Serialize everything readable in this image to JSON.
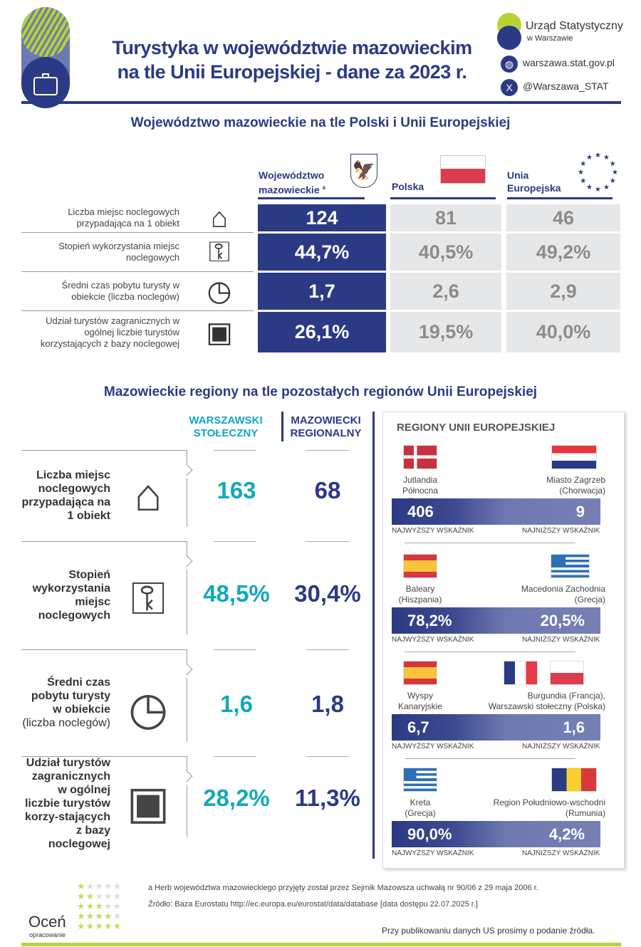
{
  "header": {
    "title_line1": "Turystyka w województwie mazowieckim",
    "title_line2": "na tle Unii Europejskiej - dane za 2023 r.",
    "org_name": "Urząd Statystyczny",
    "org_city": "w Warszawie",
    "website": "warszawa.stat.gov.pl",
    "twitter": "@Warszawa_STAT"
  },
  "section1": {
    "title": "Województwo mazowieckie na tle Polski i Unii Europejskiej",
    "columns": {
      "voiv_line1": "Województwo",
      "voiv_line2": "mazowieckie",
      "voiv_sup": "a",
      "poland": "Polska",
      "eu_line1": "Unia",
      "eu_line2": "Europejska"
    },
    "rows": [
      {
        "label": "Liczba miejsc noclegowych przypadająca na 1 obiekt",
        "icon": "house-bed-icon",
        "voiv": "124",
        "poland": "81",
        "eu": "46"
      },
      {
        "label": "Stopień wykorzystania miejsc noclegowych",
        "icon": "key-clock-icon",
        "voiv": "44,7%",
        "poland": "40,5%",
        "eu": "49,2%"
      },
      {
        "label": "Średni czas pobytu turysty w obiekcie (liczba noclegów)",
        "icon": "hand-clock-icon",
        "voiv": "1,7",
        "poland": "2,6",
        "eu": "2,9"
      },
      {
        "label": "Udział turystów zagranicznych w ogólnej liczbie turystów korzystających z bazy noclegowej",
        "icon": "passport-icon",
        "voiv": "26,1%",
        "poland": "19,5%",
        "eu": "40,0%"
      }
    ]
  },
  "section2": {
    "title": "Mazowieckie regiony na tle pozostałych regionów Unii Europejskiej",
    "col_ws_line1": "WARSZAWSKI",
    "col_ws_line2": "STOŁECZNY",
    "col_mr_line1": "MAZOWIECKI",
    "col_mr_line2": "REGIONALNY",
    "eu_title": "REGIONY UNII EUROPEJSKIEJ",
    "rows": [
      {
        "label": "Liczba miejsc noclegowych przypadająca na 1 obiekt",
        "label_extra": "",
        "ws": "163",
        "mr": "68",
        "high": {
          "name": "Jutlandia Północna",
          "country": "(Dania)",
          "value": "406",
          "flag": "dk"
        },
        "low": {
          "name": "Miasto Zagrzeb",
          "country": "(Chorwacja)",
          "value": "9",
          "flag": "hr"
        }
      },
      {
        "label": "Stopień wykorzystania miejsc noclegowych",
        "label_extra": "",
        "ws": "48,5%",
        "mr": "30,4%",
        "high": {
          "name": "Baleary",
          "country": "(Hiszpania)",
          "value": "78,2%",
          "flag": "es"
        },
        "low": {
          "name": "Macedonia Zachodnia",
          "country": "(Grecja)",
          "value": "20,5%",
          "flag": "gr"
        }
      },
      {
        "label": "Średni czas pobytu turysty w obiekcie",
        "label_extra": "(liczba noclegów)",
        "ws": "1,6",
        "mr": "1,8",
        "high": {
          "name": "Wyspy Kanaryjskie",
          "country": "(Hiszpania)",
          "value": "6,7",
          "flag": "es"
        },
        "low": {
          "name": "Burgundia (Francja),",
          "country": "Warszawski stołeczny (Polska)",
          "value": "1,6",
          "flag": "fr",
          "flag2": "pl"
        }
      },
      {
        "label": "Udział turystów zagranicznych w ogólnej liczbie turystów korzy-stających z bazy noclegowej",
        "label_extra": "",
        "ws": "28,2%",
        "mr": "11,3%",
        "high": {
          "name": "Kreta",
          "country": "(Grecja)",
          "value": "90,0%",
          "flag": "gr"
        },
        "low": {
          "name": "Region Południowo-wschodni",
          "country": "(Rumunia)",
          "value": "4,2%",
          "flag": "ro"
        }
      }
    ],
    "high_label": "NAJWYŻSZY WSKAŹNIK",
    "low_label": "NAJNIŻSZY WSKAŹNIK"
  },
  "footer": {
    "note": "a Herb województwa mazowieckiego przyjęty został przez Sejmik Mazowsza uchwałą nr 90/06 z 29 maja 2006 r.",
    "source": "Źródło: Baza Eurostatu http://ec.europa.eu/eurostat/data/database [data dostępu 22.07.2025 r.]",
    "rate_title": "Oceń",
    "rate_sub": "opracowanie",
    "publish_note": "Przy publikowaniu danych US prosimy o podanie źródła."
  },
  "colors": {
    "navy": "#2b3a84",
    "teal": "#12a8bf",
    "lime": "#b5d334",
    "gray": "#e6e7e8"
  }
}
